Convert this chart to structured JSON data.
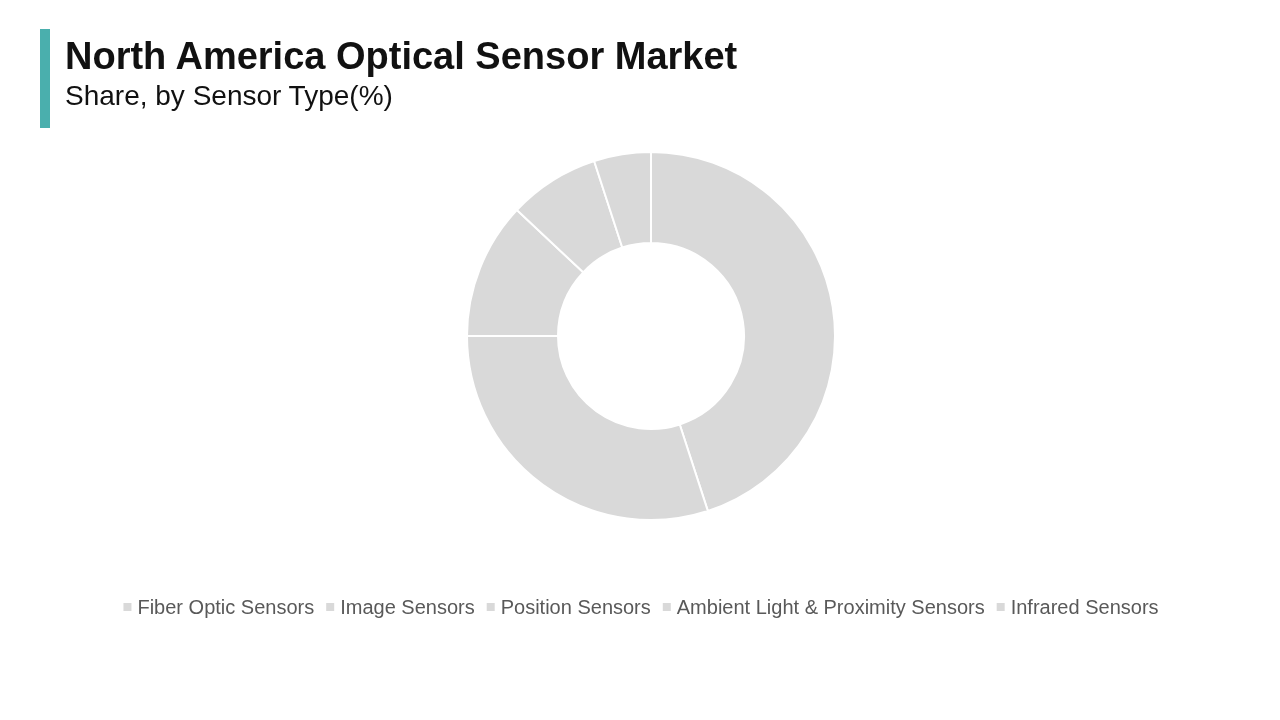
{
  "chart_data": {
    "type": "donut",
    "title": "North America Optical Sensor Market",
    "subtitle": "Share, by Sensor Type(%)",
    "categories": [
      "Fiber Optic Sensors",
      "Image Sensors",
      "Position Sensors",
      "Ambient Light & Proximity Sensors",
      "Infrared Sensors"
    ],
    "values": [
      45,
      30,
      12,
      8,
      5
    ],
    "colors": [
      "#d9d9d9",
      "#d9d9d9",
      "#d9d9d9",
      "#d9d9d9",
      "#d9d9d9"
    ],
    "legend": "bottom"
  }
}
